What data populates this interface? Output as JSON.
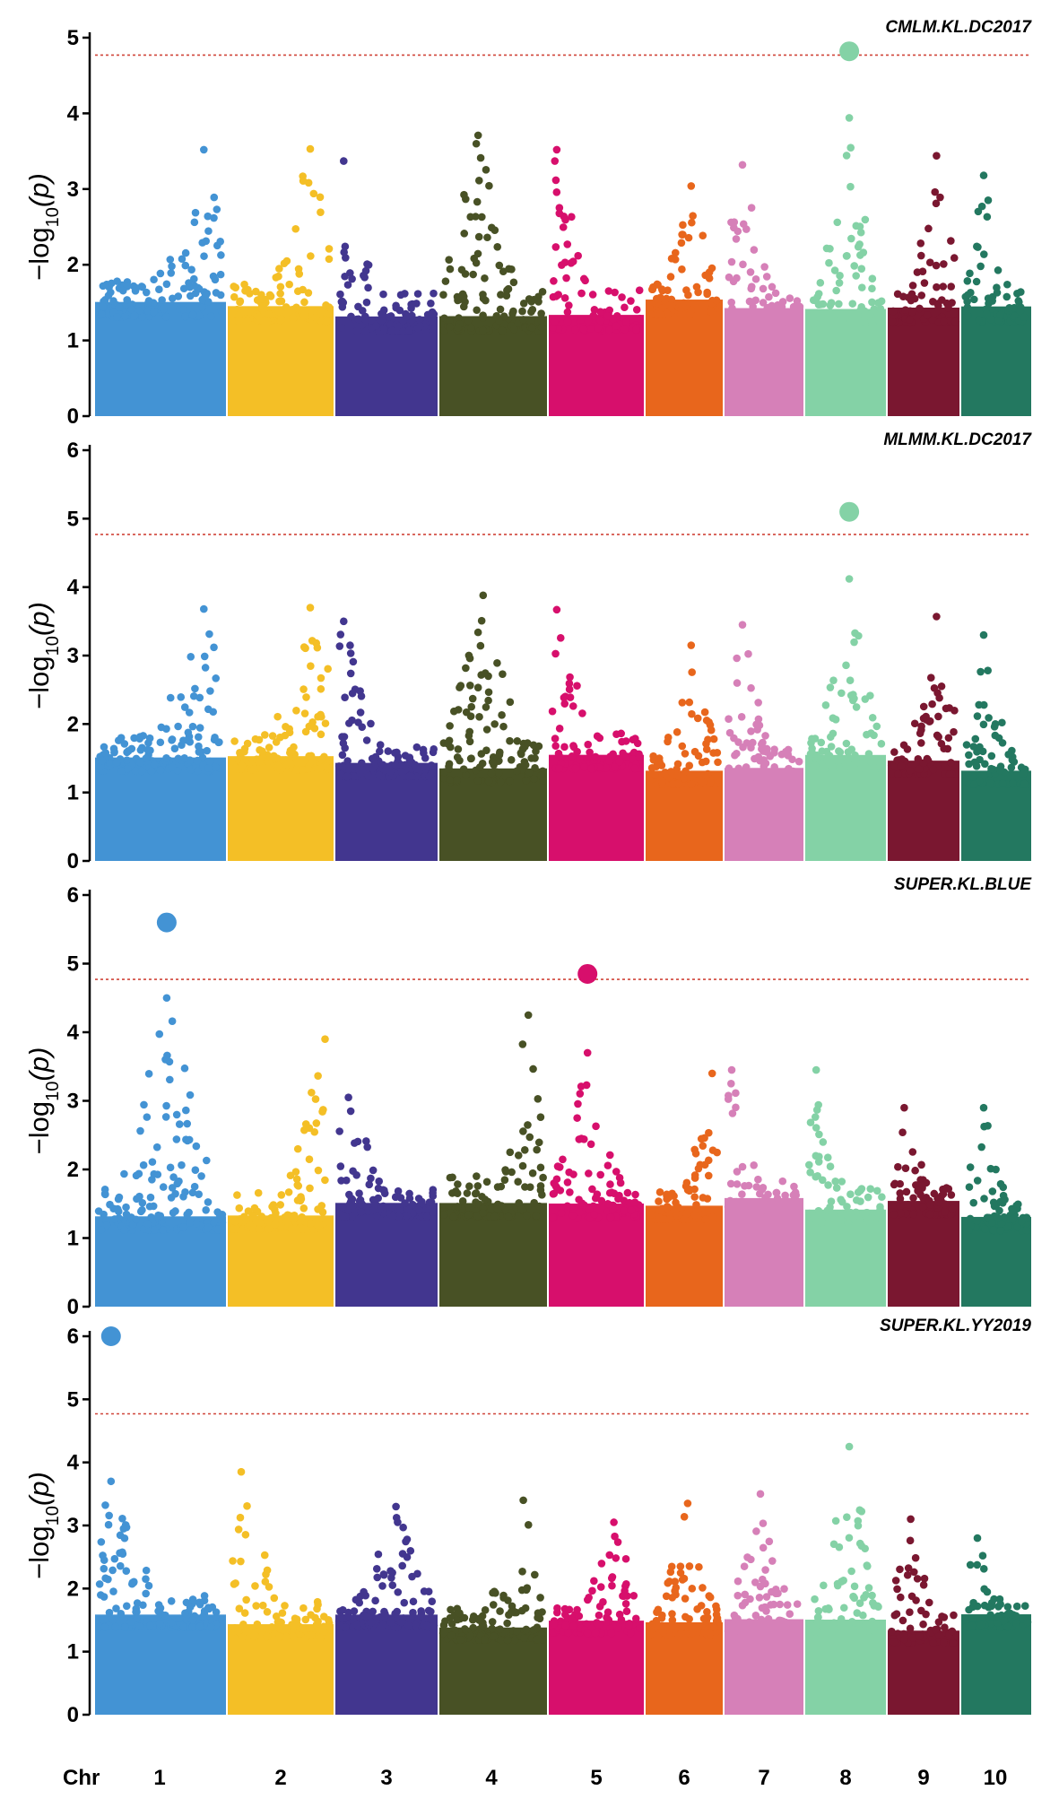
{
  "chart_data": {
    "type": "scatter",
    "subtype": "manhattan",
    "x_axis_label": "Chr",
    "chromosomes": [
      "1",
      "2",
      "3",
      "4",
      "5",
      "6",
      "7",
      "8",
      "9",
      "10"
    ],
    "chromosome_colors": [
      "#4393d4",
      "#f4bf26",
      "#42368f",
      "#485125",
      "#d70f6c",
      "#e8661c",
      "#d680b8",
      "#84d2a6",
      "#7a1730",
      "#237860"
    ],
    "ylabel": "−log10(p)",
    "threshold": 4.77,
    "panels": [
      {
        "title": "CMLM.KL.DC2017",
        "ylim": [
          0,
          5
        ],
        "yticks": [
          "0",
          "1",
          "2",
          "3",
          "4",
          "5"
        ],
        "chromosome_peaks": [
          3.52,
          3.53,
          3.37,
          3.71,
          3.52,
          3.04,
          3.32,
          3.94,
          3.44,
          3.18
        ],
        "significant_hits": [
          {
            "chr": "8",
            "value": 4.82
          }
        ]
      },
      {
        "title": "MLMM.KL.DC2017",
        "ylim": [
          0,
          6
        ],
        "yticks": [
          "0",
          "1",
          "2",
          "3",
          "4",
          "5",
          "6"
        ],
        "chromosome_peaks": [
          3.68,
          3.7,
          3.5,
          3.88,
          3.67,
          3.15,
          3.45,
          4.12,
          3.57,
          3.3
        ],
        "significant_hits": [
          {
            "chr": "8",
            "value": 5.1
          }
        ]
      },
      {
        "title": "SUPER.KL.BLUE",
        "ylim": [
          0,
          6
        ],
        "yticks": [
          "0",
          "1",
          "2",
          "3",
          "4",
          "5",
          "6"
        ],
        "chromosome_peaks": [
          4.5,
          3.9,
          3.05,
          4.25,
          3.7,
          3.4,
          3.45,
          3.45,
          2.9,
          2.9
        ],
        "significant_hits": [
          {
            "chr": "1",
            "value": 5.6
          },
          {
            "chr": "5",
            "value": 4.85
          }
        ]
      },
      {
        "title": "SUPER.KL.YY2019",
        "ylim": [
          0,
          6
        ],
        "yticks": [
          "0",
          "1",
          "2",
          "3",
          "4",
          "5",
          "6"
        ],
        "chromosome_peaks": [
          3.7,
          3.85,
          3.3,
          3.4,
          3.05,
          3.35,
          3.5,
          4.25,
          3.1,
          2.8
        ],
        "significant_hits": [
          {
            "chr": "1",
            "value": 6.0
          }
        ]
      }
    ]
  }
}
